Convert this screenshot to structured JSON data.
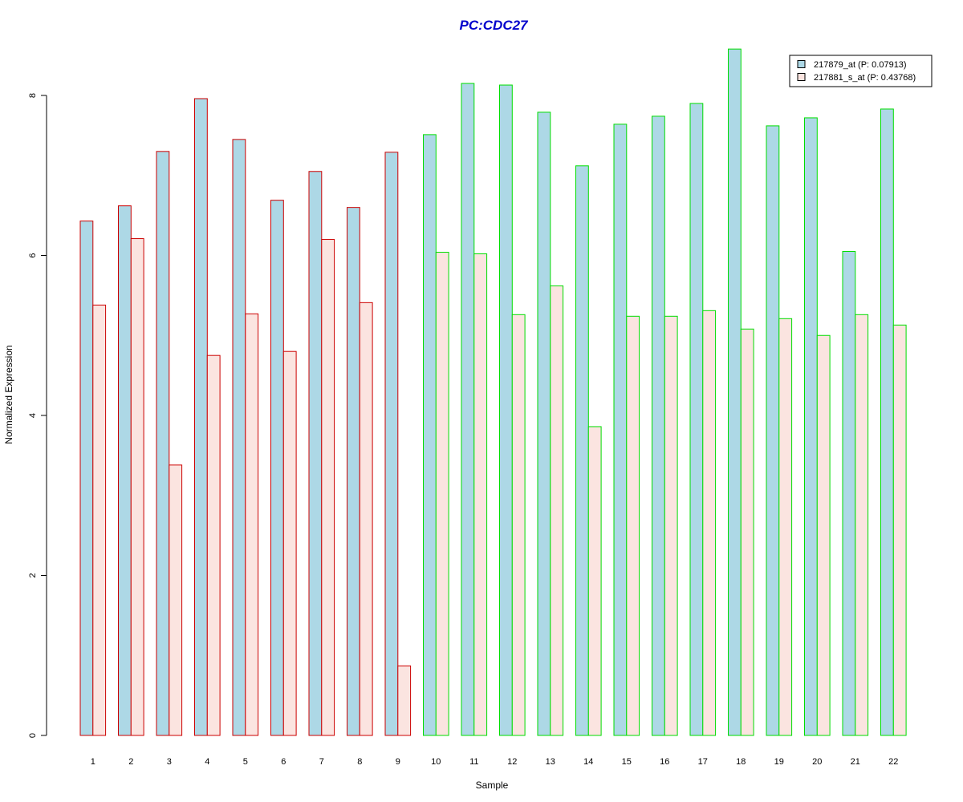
{
  "chart_data": {
    "type": "bar",
    "title": "PC:CDC27",
    "title_color": "#0000CC",
    "xlabel": "Sample",
    "ylabel": "Normalized Expression",
    "ylim": [
      0,
      8.6
    ],
    "yticks": [
      0,
      2,
      4,
      6,
      8
    ],
    "categories": [
      "1",
      "2",
      "3",
      "4",
      "5",
      "6",
      "7",
      "8",
      "9",
      "10",
      "11",
      "12",
      "13",
      "14",
      "15",
      "16",
      "17",
      "18",
      "19",
      "20",
      "21",
      "22"
    ],
    "group_outline_colors": [
      "#CC0000",
      "#CC0000",
      "#CC0000",
      "#CC0000",
      "#CC0000",
      "#CC0000",
      "#CC0000",
      "#CC0000",
      "#CC0000",
      "#00DD00",
      "#00DD00",
      "#00DD00",
      "#00DD00",
      "#00DD00",
      "#00DD00",
      "#00DD00",
      "#00DD00",
      "#00DD00",
      "#00DD00",
      "#00DD00",
      "#00DD00",
      "#00DD00"
    ],
    "legend_position": "top-right",
    "grid": false,
    "series": [
      {
        "name": "217879_at (P: 0.07913)",
        "fill": "#ADD8E6",
        "values": [
          6.43,
          6.62,
          7.3,
          7.96,
          7.45,
          6.69,
          7.05,
          6.6,
          7.29,
          7.51,
          8.15,
          8.13,
          7.79,
          7.12,
          7.64,
          7.74,
          7.9,
          8.58,
          7.62,
          7.72,
          6.05,
          7.83
        ]
      },
      {
        "name": "217881_s_at (P: 0.43768)",
        "fill": "#FBE4E0",
        "values": [
          5.38,
          6.21,
          3.38,
          4.75,
          5.27,
          4.8,
          6.2,
          5.41,
          0.87,
          6.04,
          6.02,
          5.26,
          5.62,
          3.86,
          5.24,
          5.24,
          5.31,
          5.08,
          5.21,
          5.0,
          5.26,
          5.13
        ]
      }
    ]
  }
}
